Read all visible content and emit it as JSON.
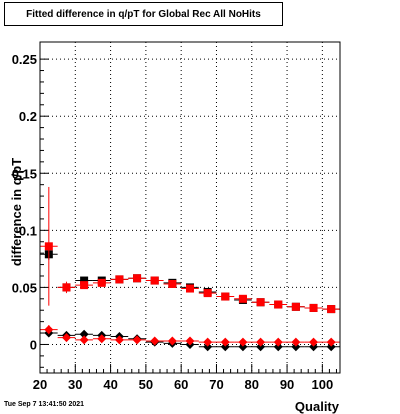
{
  "footer": {
    "date": "Tue Sep  7 13:41:50 2021"
  },
  "chart_data": {
    "type": "scatter",
    "title": "Fitted difference in q/pT for Global Rec All NoHits",
    "xlabel": "Quality",
    "ylabel": "difference in q/pT",
    "xlim": [
      20,
      105
    ],
    "ylim": [
      -0.025,
      0.265
    ],
    "x_ticks": [
      {
        "v": 20,
        "label": "20"
      },
      {
        "v": 30,
        "label": "30"
      },
      {
        "v": 40,
        "label": "40"
      },
      {
        "v": 50,
        "label": "50"
      },
      {
        "v": 60,
        "label": "60"
      },
      {
        "v": 70,
        "label": "70"
      },
      {
        "v": 80,
        "label": "80"
      },
      {
        "v": 90,
        "label": "90"
      },
      {
        "v": 100,
        "label": "100"
      }
    ],
    "y_ticks": [
      {
        "v": 0,
        "label": "0"
      },
      {
        "v": 0.05,
        "label": "0.05"
      },
      {
        "v": 0.1,
        "label": "0.1"
      },
      {
        "v": 0.15,
        "label": "0.15"
      },
      {
        "v": 0.2,
        "label": "0.2"
      },
      {
        "v": 0.25,
        "label": "0.25"
      }
    ],
    "grid": true,
    "series": [
      {
        "marker": "square",
        "color": "#000000",
        "points": [
          {
            "x": 22.5,
            "y": 0.079,
            "err": 0.005
          },
          {
            "x": 27.5,
            "y": 0.05,
            "err": 0.003
          },
          {
            "x": 32.5,
            "y": 0.056,
            "err": 0.002
          },
          {
            "x": 37.5,
            "y": 0.056,
            "err": 0.002
          },
          {
            "x": 42.5,
            "y": 0.057,
            "err": 0.002
          },
          {
            "x": 47.5,
            "y": 0.058,
            "err": 0.002
          },
          {
            "x": 52.5,
            "y": 0.056,
            "err": 0.002
          },
          {
            "x": 57.5,
            "y": 0.054,
            "err": 0.002
          },
          {
            "x": 62.5,
            "y": 0.05,
            "err": 0.002
          },
          {
            "x": 67.5,
            "y": 0.046,
            "err": 0.002
          },
          {
            "x": 72.5,
            "y": 0.042,
            "err": 0.002
          },
          {
            "x": 77.5,
            "y": 0.039,
            "err": 0.002
          },
          {
            "x": 82.5,
            "y": 0.037,
            "err": 0.002
          },
          {
            "x": 87.5,
            "y": 0.035,
            "err": 0.002
          },
          {
            "x": 92.5,
            "y": 0.033,
            "err": 0.002
          },
          {
            "x": 97.5,
            "y": 0.032,
            "err": 0.002
          },
          {
            "x": 102.5,
            "y": 0.031,
            "err": 0.002
          }
        ]
      },
      {
        "marker": "square",
        "color": "#ff0000",
        "points": [
          {
            "x": 22.5,
            "y": 0.086,
            "err": 0.052
          },
          {
            "x": 27.5,
            "y": 0.05,
            "err": 0.005
          },
          {
            "x": 32.5,
            "y": 0.052,
            "err": 0.003
          },
          {
            "x": 37.5,
            "y": 0.054,
            "err": 0.002
          },
          {
            "x": 42.5,
            "y": 0.057,
            "err": 0.002
          },
          {
            "x": 47.5,
            "y": 0.058,
            "err": 0.002
          },
          {
            "x": 52.5,
            "y": 0.056,
            "err": 0.002
          },
          {
            "x": 57.5,
            "y": 0.053,
            "err": 0.002
          },
          {
            "x": 62.5,
            "y": 0.049,
            "err": 0.002
          },
          {
            "x": 67.5,
            "y": 0.045,
            "err": 0.002
          },
          {
            "x": 72.5,
            "y": 0.042,
            "err": 0.002
          },
          {
            "x": 77.5,
            "y": 0.04,
            "err": 0.002
          },
          {
            "x": 82.5,
            "y": 0.037,
            "err": 0.002
          },
          {
            "x": 87.5,
            "y": 0.035,
            "err": 0.002
          },
          {
            "x": 92.5,
            "y": 0.033,
            "err": 0.002
          },
          {
            "x": 97.5,
            "y": 0.032,
            "err": 0.002
          },
          {
            "x": 102.5,
            "y": 0.031,
            "err": 0.002
          }
        ]
      },
      {
        "marker": "diamond",
        "color": "#000000",
        "points": [
          {
            "x": 22.5,
            "y": 0.01,
            "err": 0.002
          },
          {
            "x": 27.5,
            "y": 0.008,
            "err": 0.001
          },
          {
            "x": 32.5,
            "y": 0.009,
            "err": 0.001
          },
          {
            "x": 37.5,
            "y": 0.008,
            "err": 0.001
          },
          {
            "x": 42.5,
            "y": 0.007,
            "err": 0.001
          },
          {
            "x": 47.5,
            "y": 0.005,
            "err": 0.001
          },
          {
            "x": 52.5,
            "y": 0.002,
            "err": 0.001
          },
          {
            "x": 57.5,
            "y": 0.001,
            "err": 0.001
          },
          {
            "x": 62.5,
            "y": 0.0,
            "err": 0.001
          },
          {
            "x": 67.5,
            "y": -0.002,
            "err": 0.001
          },
          {
            "x": 72.5,
            "y": -0.002,
            "err": 0.001
          },
          {
            "x": 77.5,
            "y": -0.002,
            "err": 0.001
          },
          {
            "x": 82.5,
            "y": -0.002,
            "err": 0.001
          },
          {
            "x": 87.5,
            "y": -0.002,
            "err": 0.001
          },
          {
            "x": 92.5,
            "y": -0.002,
            "err": 0.001
          },
          {
            "x": 97.5,
            "y": -0.002,
            "err": 0.001
          },
          {
            "x": 102.5,
            "y": -0.002,
            "err": 0.001
          }
        ]
      },
      {
        "marker": "diamond",
        "color": "#ff0000",
        "points": [
          {
            "x": 22.5,
            "y": 0.013,
            "err": 0.004
          },
          {
            "x": 27.5,
            "y": 0.006,
            "err": 0.002
          },
          {
            "x": 32.5,
            "y": 0.004,
            "err": 0.001
          },
          {
            "x": 37.5,
            "y": 0.005,
            "err": 0.001
          },
          {
            "x": 42.5,
            "y": 0.004,
            "err": 0.001
          },
          {
            "x": 47.5,
            "y": 0.004,
            "err": 0.001
          },
          {
            "x": 52.5,
            "y": 0.003,
            "err": 0.001
          },
          {
            "x": 57.5,
            "y": 0.003,
            "err": 0.001
          },
          {
            "x": 62.5,
            "y": 0.003,
            "err": 0.001
          },
          {
            "x": 67.5,
            "y": 0.002,
            "err": 0.001
          },
          {
            "x": 72.5,
            "y": 0.002,
            "err": 0.001
          },
          {
            "x": 77.5,
            "y": 0.002,
            "err": 0.001
          },
          {
            "x": 82.5,
            "y": 0.002,
            "err": 0.001
          },
          {
            "x": 87.5,
            "y": 0.002,
            "err": 0.001
          },
          {
            "x": 92.5,
            "y": 0.002,
            "err": 0.001
          },
          {
            "x": 97.5,
            "y": 0.002,
            "err": 0.001
          },
          {
            "x": 102.5,
            "y": 0.002,
            "err": 0.001
          }
        ]
      }
    ]
  }
}
